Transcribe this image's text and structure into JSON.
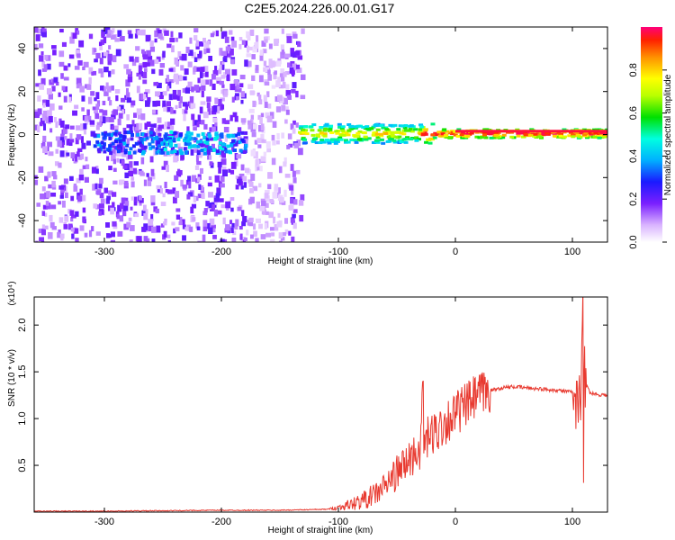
{
  "page_title": "C2E5.2024.226.00.01.G17",
  "chart_data": [
    {
      "type": "heatmap",
      "title": "C2E5.2024.226.00.01.G17",
      "xlabel": "Height of straight line (km)",
      "ylabel": "Frequency (Hz)",
      "xlim": [
        -360,
        130
      ],
      "ylim": [
        -50,
        50
      ],
      "xticks": [
        -300,
        -200,
        -100,
        0,
        100
      ],
      "yticks": [
        -40,
        -20,
        0,
        20,
        40
      ],
      "colorbar": {
        "label": "Normalized spectral amplitude",
        "range": [
          0,
          1
        ],
        "ticks": [
          "0.0",
          "0.2",
          "0.4",
          "0.6",
          "0.8"
        ]
      },
      "description_points": [
        {
          "x_range": [
            -360,
            -135
          ],
          "pattern": "scattered low-amplitude noise across all frequencies"
        },
        {
          "x_range": [
            -250,
            -180
          ],
          "freq": -4,
          "amplitude": 0.3
        },
        {
          "x_range": [
            -130,
            130
          ],
          "freq": 1,
          "amplitude": 0.9
        }
      ]
    },
    {
      "type": "line",
      "xlabel": "Height of straight line (km)",
      "ylabel": "SNR (10 * v/v)",
      "y_multiplier": "(x10⁴)",
      "xlim": [
        -360,
        130
      ],
      "ylim": [
        0,
        2.3
      ],
      "xticks": [
        -300,
        -200,
        -100,
        0,
        100
      ],
      "yticks": [
        0.5,
        1.0,
        1.5,
        2.0
      ],
      "series": [
        {
          "color": "#e8392f",
          "x": [
            -360,
            -300,
            -250,
            -200,
            -150,
            -110,
            -100,
            -90,
            -80,
            -70,
            -60,
            -50,
            -40,
            -30,
            -20,
            -10,
            0,
            10,
            20,
            30,
            40,
            50,
            60,
            70,
            80,
            90,
            100,
            105,
            110,
            115,
            120,
            130
          ],
          "y": [
            0.01,
            0.01,
            0.015,
            0.02,
            0.02,
            0.03,
            0.05,
            0.08,
            0.12,
            0.18,
            0.28,
            0.42,
            0.55,
            0.7,
            0.82,
            0.95,
            1.05,
            1.15,
            1.25,
            1.3,
            1.33,
            1.34,
            1.33,
            1.32,
            1.31,
            1.3,
            1.28,
            1.35,
            1.4,
            1.28,
            1.26,
            1.25
          ]
        }
      ]
    }
  ]
}
